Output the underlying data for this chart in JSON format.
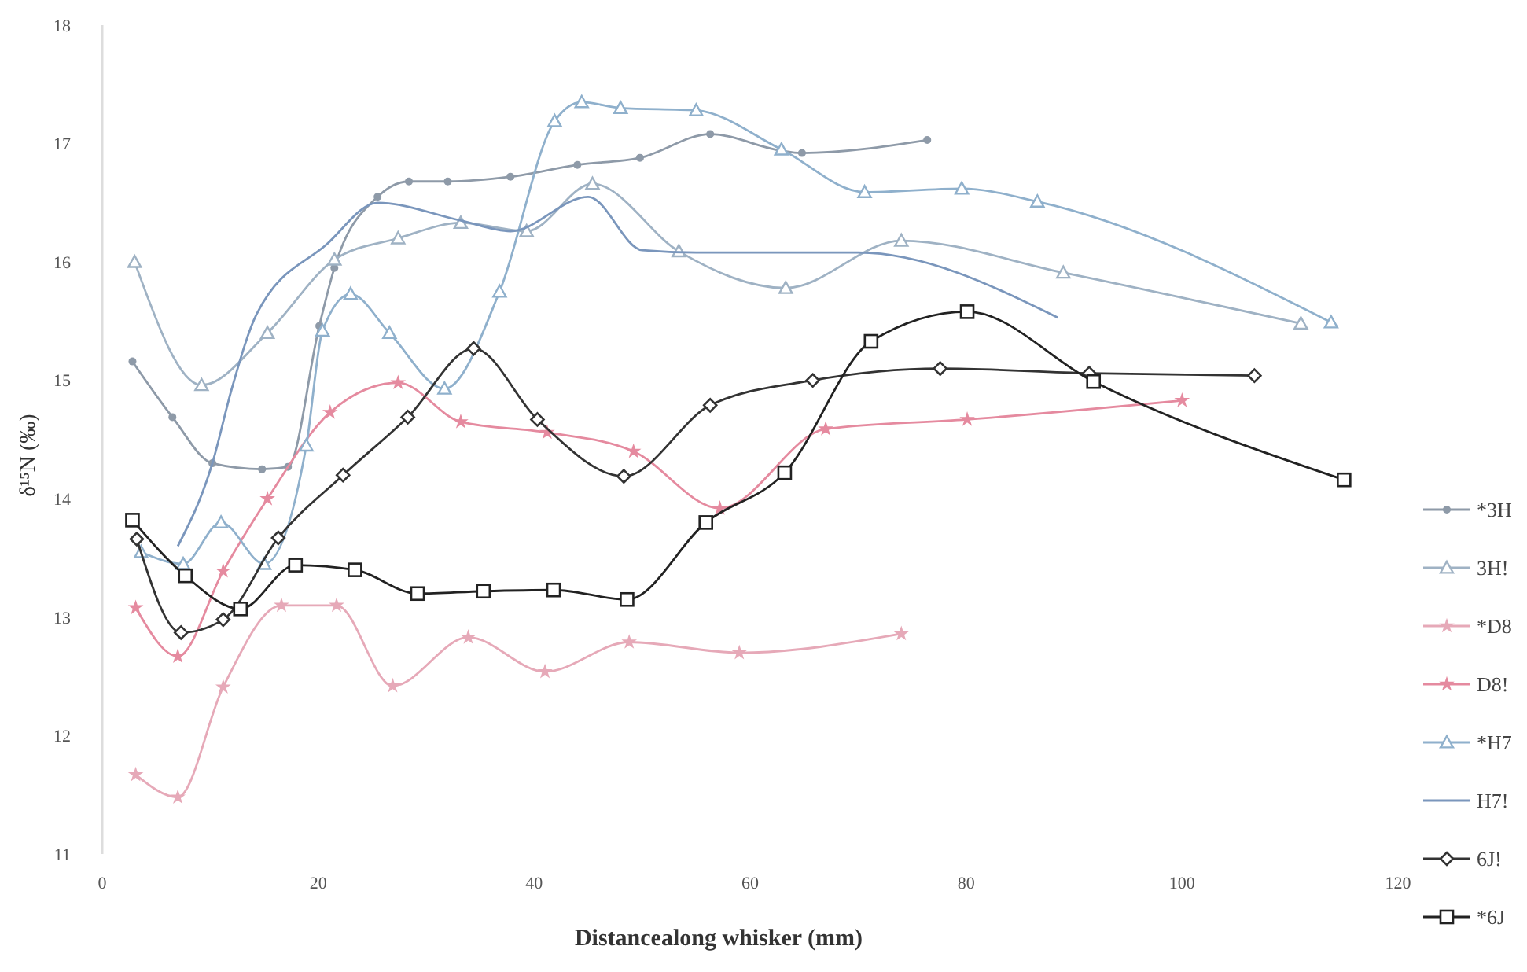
{
  "chart_data": {
    "type": "line",
    "xlabel": "Distancealong whisker (mm)",
    "ylabel": "δ¹⁵N (‰)",
    "xlim": [
      0,
      120
    ],
    "xticks": [
      0,
      20,
      40,
      60,
      80,
      100,
      120
    ],
    "ylim": [
      11,
      18
    ],
    "yticks": [
      11,
      12,
      13,
      14,
      15,
      16,
      17,
      18
    ],
    "legend": "right",
    "series": [
      {
        "name": "*3H",
        "color": "#8e9aa8",
        "marker": "circle",
        "x": [
          2.8,
          6.5,
          10.2,
          14.8,
          17.2,
          20.1,
          21.5,
          25.5,
          28.4,
          32,
          37.8,
          44,
          49.8,
          56.3,
          62.9,
          64.8,
          76.4
        ],
        "values": [
          15.16,
          14.69,
          14.3,
          14.25,
          14.27,
          15.46,
          15.95,
          16.55,
          16.68,
          16.68,
          16.72,
          16.82,
          16.88,
          17.08,
          16.94,
          16.92,
          17.03
        ]
      },
      {
        "name": "3H!",
        "color": "#9fb2c4",
        "marker": "triangle",
        "x": [
          3,
          9.2,
          15.3,
          21.5,
          27.4,
          33.2,
          39.3,
          45.4,
          53.4,
          63.3,
          74,
          89,
          111
        ],
        "values": [
          16.0,
          14.96,
          15.4,
          16.02,
          16.2,
          16.33,
          16.26,
          16.66,
          16.09,
          15.78,
          16.18,
          15.91,
          15.48
        ]
      },
      {
        "name": "*D8",
        "color": "#e6a9b8",
        "marker": "star",
        "x": [
          3.1,
          7,
          11.2,
          16.6,
          21.7,
          26.9,
          33.9,
          41,
          48.8,
          59,
          74
        ],
        "values": [
          11.67,
          11.48,
          12.41,
          13.1,
          13.1,
          12.42,
          12.83,
          12.54,
          12.79,
          12.7,
          12.86
        ]
      },
      {
        "name": "D8!",
        "color": "#e58a9f",
        "marker": "star",
        "x": [
          3.1,
          7,
          11.2,
          15.3,
          21.1,
          27.4,
          33.2,
          41.2,
          49.2,
          57.2,
          67,
          80.1,
          100
        ],
        "values": [
          13.08,
          12.67,
          13.39,
          14.0,
          14.73,
          14.98,
          14.65,
          14.56,
          14.4,
          13.92,
          14.59,
          14.67,
          14.83
        ]
      },
      {
        "name": "*H7",
        "color": "#8fb0cc",
        "marker": "triangle",
        "x": [
          3.6,
          7.5,
          11,
          15,
          18.9,
          20.4,
          23,
          26.6,
          31.7,
          36.8,
          41.9,
          44.4,
          48,
          55,
          62.9,
          70.6,
          79.6,
          86.6,
          113.8
        ],
        "values": [
          13.55,
          13.45,
          13.8,
          13.45,
          14.45,
          15.42,
          15.73,
          15.4,
          14.93,
          15.75,
          17.19,
          17.35,
          17.3,
          17.28,
          16.95,
          16.59,
          16.62,
          16.51,
          15.49
        ]
      },
      {
        "name": "H7!",
        "color": "#7a96bc",
        "marker": "none",
        "x": [
          7,
          10.2,
          12,
          14.3,
          20.8,
          25.5,
          33.2,
          37.8,
          45,
          50,
          55,
          70,
          88.5
        ],
        "values": [
          13.6,
          14.3,
          14.93,
          15.56,
          16.15,
          16.5,
          16.35,
          16.26,
          16.55,
          16.1,
          16.08,
          16.08,
          15.53
        ]
      },
      {
        "name": "6J!",
        "color": "#333333",
        "marker": "diamond",
        "x": [
          3.2,
          7.3,
          11.2,
          16.3,
          22.3,
          28.3,
          34.4,
          40.3,
          48.3,
          56.3,
          65.8,
          77.6,
          91.4,
          106.7
        ],
        "values": [
          13.66,
          12.87,
          12.98,
          13.67,
          14.2,
          14.69,
          15.27,
          14.67,
          14.19,
          14.79,
          15.0,
          15.1,
          15.06,
          15.04
        ]
      },
      {
        "name": "*6J",
        "color": "#222222",
        "marker": "square",
        "x": [
          2.8,
          7.7,
          12.8,
          17.9,
          23.4,
          29.2,
          35.3,
          41.8,
          48.6,
          55.9,
          63.2,
          71.2,
          80.1,
          91.8,
          115
        ],
        "values": [
          13.82,
          13.35,
          13.07,
          13.44,
          13.4,
          13.2,
          13.22,
          13.23,
          13.15,
          13.8,
          14.22,
          15.33,
          15.58,
          14.99,
          14.16
        ]
      }
    ]
  }
}
